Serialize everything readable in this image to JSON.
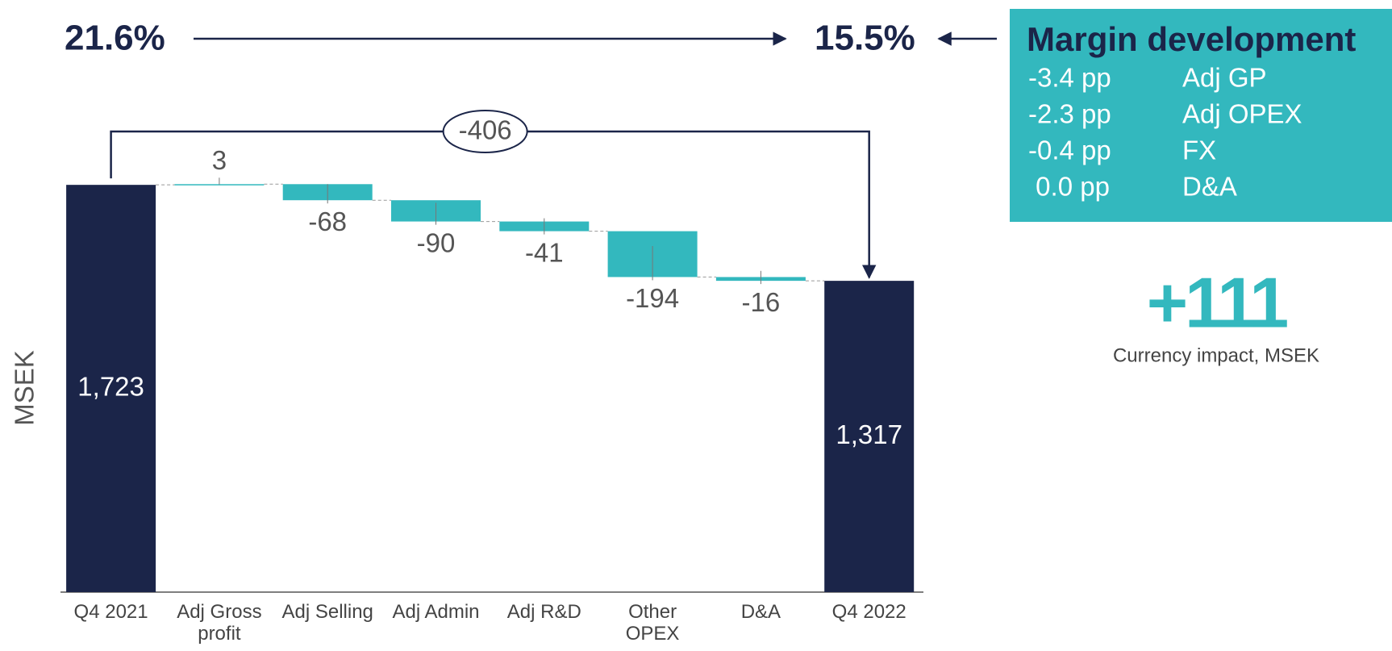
{
  "chart_data": {
    "type": "waterfall",
    "y_axis_label": "MSEK",
    "categories": [
      "Q4 2021",
      "Adj Gross\nprofit",
      "Adj Selling",
      "Adj Admin",
      "Adj R&D",
      "Other\nOPEX",
      "D&A",
      "Q4 2022"
    ],
    "values": [
      1723,
      3,
      -68,
      -90,
      -41,
      -194,
      -16,
      1317
    ],
    "value_labels": [
      "1,723",
      "3",
      "-68",
      "-90",
      "-41",
      "-194",
      "-16",
      "1,317"
    ],
    "measure": [
      "absolute",
      "relative",
      "relative",
      "relative",
      "relative",
      "relative",
      "relative",
      "total"
    ],
    "total_color": "#1b2549",
    "change_color": "#33b8be",
    "ylim": [
      0,
      2000
    ],
    "total_change": -406,
    "margin_start": {
      "value": 21.6,
      "label": "21.6%"
    },
    "margin_end": {
      "value": 15.5,
      "label": "15.5%"
    },
    "margin_box": {
      "title": "Margin development",
      "rows": [
        {
          "change": "-3.4 pp",
          "item": "Adj GP"
        },
        {
          "change": "-2.3 pp",
          "item": "Adj OPEX"
        },
        {
          "change": "-0.4 pp",
          "item": "FX"
        },
        {
          "change": " 0.0 pp",
          "item": "D&A"
        }
      ]
    },
    "currency_impact": {
      "value": "+111",
      "caption": "Currency impact, MSEK"
    }
  }
}
